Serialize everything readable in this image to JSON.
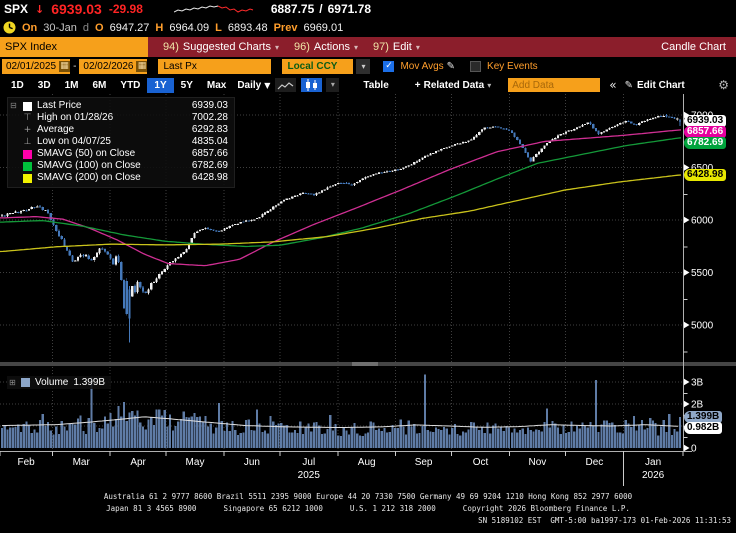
{
  "icons": {
    "caret_down": "▾",
    "caret_down_solid": "▼",
    "pencil": "✎",
    "gear": "⚙",
    "collapse": "«",
    "check": "✓",
    "plus": "+",
    "tree_minus": "⊟",
    "tree_plus": "⊞",
    "calendar": "▦",
    "slash": "/"
  },
  "header": {
    "ticker": "SPX",
    "arrow": "↓",
    "last": "6939.03",
    "change": "-29.98",
    "range_low": "6887.75",
    "range_sep": "/",
    "range_high": "6971.78",
    "session": {
      "on_label": "On",
      "date": "30-Jan",
      "freq": "d",
      "o_label": "O",
      "open": "6947.27",
      "h_label": "H",
      "high": "6964.09",
      "l_label": "L",
      "low": "6893.48",
      "prev_label": "Prev",
      "prev": "6969.01"
    }
  },
  "menubar": {
    "ticker_box": "SPX Index",
    "items": [
      {
        "key": "94)",
        "label": "Suggested Charts"
      },
      {
        "key": "96)",
        "label": "Actions"
      },
      {
        "key": "97)",
        "label": "Edit"
      }
    ],
    "right_label": "Candle Chart"
  },
  "toolbar": {
    "date_from": "02/01/2025",
    "dash": "-",
    "date_to": "02/02/2026",
    "price_field": "Last Px",
    "currency": "Local CCY",
    "mov_avgs": "Mov Avgs",
    "key_events": "Key Events"
  },
  "tabs": {
    "periods": [
      "1D",
      "3D",
      "1M",
      "6M",
      "YTD",
      "1Y",
      "5Y",
      "Max"
    ],
    "selected": "1Y",
    "frequency": "Daily",
    "table": "Table",
    "related": "Related Data",
    "add_data_placeholder": "Add Data",
    "collapse": "«",
    "edit_chart": "Edit Chart"
  },
  "legend": {
    "rows": [
      {
        "type": "square",
        "color": "#ffffff",
        "label": "Last Price",
        "value": "6939.03"
      },
      {
        "type": "glyph",
        "glyph": "⊤",
        "label": "High on 01/28/26",
        "value": "7002.28"
      },
      {
        "type": "glyph",
        "glyph": "+",
        "label": "Average",
        "value": "6292.83"
      },
      {
        "type": "glyph",
        "glyph": "⊥",
        "label": "Low on 04/07/25",
        "value": "4835.04"
      },
      {
        "type": "square",
        "color": "#ff00aa",
        "label": "SMAVG (50) on Close",
        "value": "6857.66"
      },
      {
        "type": "square",
        "color": "#00c13c",
        "label": "SMAVG (100) on Close",
        "value": "6782.69"
      },
      {
        "type": "square",
        "color": "#f2f200",
        "label": "SMAVG (200) on Close",
        "value": "6428.98"
      }
    ]
  },
  "volume_legend": {
    "label": "Volume",
    "value": "1.399B"
  },
  "chips": [
    {
      "name": "last-price-chip",
      "label": "6939.03",
      "bg": "#ffffff",
      "fg": "#000000",
      "panel": "price",
      "value": 6939.03
    },
    {
      "name": "smavg50-chip",
      "label": "6857.66",
      "bg": "#e6009e",
      "fg": "#ffffff",
      "panel": "price",
      "value": 6857.66
    },
    {
      "name": "smavg100-chip",
      "label": "6782.69",
      "bg": "#00a33c",
      "fg": "#ffffff",
      "panel": "price",
      "value": 6782.69
    },
    {
      "name": "smavg200-chip",
      "label": "6428.98",
      "bg": "#e8e800",
      "fg": "#000000",
      "panel": "price",
      "value": 6428.98
    },
    {
      "name": "volume-chip",
      "label": "1.399B",
      "bg": "#8fa8c8",
      "fg": "#000000",
      "panel": "volume",
      "value": 1.399
    },
    {
      "name": "volume-avg-chip",
      "label": "0.982B",
      "bg": "#ffffff",
      "fg": "#000000",
      "panel": "volume",
      "value": 0.982
    }
  ],
  "footer": {
    "line1": "Australia 61 2 9777 8600 Brazil 5511 2395 9000 Europe 44 20 7330 7500 Germany 49 69 9204 1210 Hong Kong 852 2977 6000",
    "line2": "Japan 81 3 4565 8900      Singapore 65 6212 1000      U.S. 1 212 318 2000      Copyright 2026 Bloomberg Finance L.P.",
    "line3": "SN 5189102 EST  GMT-5:00 ba1997-173 01-Feb-2026 11:31:53"
  },
  "chart_data": {
    "type": "candlestick+volume",
    "title": "SPX Index Candle Chart 1Y Daily",
    "x_range": [
      "02/01/2025",
      "02/02/2026"
    ],
    "price_ticks": [
      7000,
      6500,
      6000,
      5500,
      5000
    ],
    "volume_ticks": [
      {
        "v": 3,
        "label": "3B"
      },
      {
        "v": 2,
        "label": "2B"
      },
      {
        "v": 0,
        "label": "0"
      }
    ],
    "months": [
      "Feb",
      "Mar",
      "Apr",
      "May",
      "Jun",
      "Jul",
      "Aug",
      "Sep",
      "Oct",
      "Nov",
      "Dec",
      "Jan"
    ],
    "month_day_offsets": [
      0,
      28,
      59,
      89,
      120,
      150,
      181,
      212,
      242,
      273,
      303,
      334,
      366
    ],
    "year_labels": [
      {
        "under_month_index": 5,
        "year": "2025"
      },
      {
        "under_month_index": 11,
        "year": "2026"
      }
    ],
    "stats": {
      "last_price": 6939.03,
      "high_date": "01/28/26",
      "high": 7002.28,
      "average": 6292.83,
      "low_date": "04/07/25",
      "low": 4835.04,
      "smavg50": 6857.66,
      "smavg100": 6782.69,
      "smavg200": 6428.98,
      "volume_last_b": 1.399,
      "volume_avg_b": 0.982
    },
    "last_candle": {
      "o": 6947.27,
      "h": 6964.09,
      "l": 6893.48,
      "c": 6939.03
    },
    "close_anchors": [
      [
        0,
        6040
      ],
      [
        0.02,
        6070
      ],
      [
        0.05,
        6130
      ],
      [
        0.065,
        6090
      ],
      [
        0.076,
        5950
      ],
      [
        0.09,
        5780
      ],
      [
        0.104,
        5600
      ],
      [
        0.118,
        5680
      ],
      [
        0.132,
        5620
      ],
      [
        0.145,
        5740
      ],
      [
        0.156,
        5680
      ],
      [
        0.164,
        5580
      ],
      [
        0.169,
        5670
      ],
      [
        0.174,
        5540
      ],
      [
        0.177,
        5390
      ],
      [
        0.181,
        5075
      ],
      [
        0.186,
        5062
      ],
      [
        0.19,
        5460
      ],
      [
        0.194,
        5270
      ],
      [
        0.2,
        5400
      ],
      [
        0.21,
        5290
      ],
      [
        0.22,
        5390
      ],
      [
        0.235,
        5500
      ],
      [
        0.25,
        5610
      ],
      [
        0.27,
        5700
      ],
      [
        0.285,
        5890
      ],
      [
        0.3,
        5920
      ],
      [
        0.32,
        5890
      ],
      [
        0.335,
        5940
      ],
      [
        0.355,
        5985
      ],
      [
        0.375,
        6010
      ],
      [
        0.395,
        6100
      ],
      [
        0.41,
        6170
      ],
      [
        0.425,
        6210
      ],
      [
        0.445,
        6265
      ],
      [
        0.46,
        6235
      ],
      [
        0.48,
        6315
      ],
      [
        0.5,
        6360
      ],
      [
        0.515,
        6330
      ],
      [
        0.535,
        6405
      ],
      [
        0.555,
        6445
      ],
      [
        0.575,
        6465
      ],
      [
        0.59,
        6490
      ],
      [
        0.605,
        6535
      ],
      [
        0.625,
        6605
      ],
      [
        0.645,
        6665
      ],
      [
        0.665,
        6715
      ],
      [
        0.69,
        6755
      ],
      [
        0.71,
        6875
      ],
      [
        0.73,
        6890
      ],
      [
        0.75,
        6850
      ],
      [
        0.765,
        6720
      ],
      [
        0.78,
        6560
      ],
      [
        0.795,
        6680
      ],
      [
        0.81,
        6765
      ],
      [
        0.83,
        6835
      ],
      [
        0.85,
        6885
      ],
      [
        0.865,
        6930
      ],
      [
        0.88,
        6820
      ],
      [
        0.9,
        6885
      ],
      [
        0.92,
        6940
      ],
      [
        0.935,
        6905
      ],
      [
        0.95,
        6950
      ],
      [
        0.965,
        6978
      ],
      [
        0.975,
        7000
      ],
      [
        0.99,
        6969
      ],
      [
        1,
        6939.03
      ]
    ],
    "sma50_anchors": [
      [
        0,
        6020
      ],
      [
        0.05,
        6032
      ],
      [
        0.09,
        6008
      ],
      [
        0.13,
        5920
      ],
      [
        0.17,
        5810
      ],
      [
        0.21,
        5675
      ],
      [
        0.245,
        5585
      ],
      [
        0.3,
        5565
      ],
      [
        0.35,
        5625
      ],
      [
        0.4,
        5790
      ],
      [
        0.46,
        5958
      ],
      [
        0.52,
        6108
      ],
      [
        0.59,
        6290
      ],
      [
        0.66,
        6480
      ],
      [
        0.73,
        6650
      ],
      [
        0.8,
        6748
      ],
      [
        0.86,
        6778
      ],
      [
        0.92,
        6808
      ],
      [
        0.97,
        6840
      ],
      [
        1,
        6857.66
      ]
    ],
    "sma100_anchors": [
      [
        0,
        5980
      ],
      [
        0.06,
        5995
      ],
      [
        0.12,
        5940
      ],
      [
        0.18,
        5858
      ],
      [
        0.24,
        5798
      ],
      [
        0.3,
        5768
      ],
      [
        0.36,
        5748
      ],
      [
        0.41,
        5760
      ],
      [
        0.47,
        5830
      ],
      [
        0.53,
        5922
      ],
      [
        0.6,
        6060
      ],
      [
        0.67,
        6232
      ],
      [
        0.73,
        6390
      ],
      [
        0.79,
        6540
      ],
      [
        0.85,
        6618
      ],
      [
        0.92,
        6708
      ],
      [
        1,
        6782.69
      ]
    ],
    "sma200_anchors": [
      [
        0,
        5700
      ],
      [
        0.08,
        5745
      ],
      [
        0.16,
        5770
      ],
      [
        0.24,
        5763
      ],
      [
        0.32,
        5770
      ],
      [
        0.4,
        5792
      ],
      [
        0.48,
        5842
      ],
      [
        0.55,
        5920
      ],
      [
        0.62,
        6015
      ],
      [
        0.69,
        6085
      ],
      [
        0.76,
        6185
      ],
      [
        0.83,
        6285
      ],
      [
        0.91,
        6362
      ],
      [
        1,
        6428.98
      ]
    ],
    "volume_avg_anchors": [
      [
        0,
        1.02
      ],
      [
        0.08,
        1.06
      ],
      [
        0.13,
        1.18
      ],
      [
        0.18,
        1.32
      ],
      [
        0.21,
        1.42
      ],
      [
        0.25,
        1.32
      ],
      [
        0.3,
        1.18
      ],
      [
        0.36,
        1.02
      ],
      [
        0.42,
        0.96
      ],
      [
        0.5,
        0.93
      ],
      [
        0.56,
        0.96
      ],
      [
        0.61,
        1.05
      ],
      [
        0.66,
        1.0
      ],
      [
        0.71,
        0.94
      ],
      [
        0.76,
        0.97
      ],
      [
        0.81,
        1.06
      ],
      [
        0.86,
        1.02
      ],
      [
        0.9,
        1.0
      ],
      [
        0.95,
        1.06
      ],
      [
        1,
        0.982
      ]
    ],
    "volume_spikes": [
      [
        0.059,
        1.55
      ],
      [
        0.133,
        3.2
      ],
      [
        0.161,
        1.6
      ],
      [
        0.173,
        1.9
      ],
      [
        0.181,
        2.1
      ],
      [
        0.2,
        1.7
      ],
      [
        0.319,
        2.05
      ],
      [
        0.376,
        1.75
      ],
      [
        0.397,
        1.45
      ],
      [
        0.483,
        1.5
      ],
      [
        0.625,
        3.35
      ],
      [
        0.805,
        1.8
      ],
      [
        0.877,
        3.1
      ],
      [
        0.93,
        1.45
      ],
      [
        0.983,
        1.55
      ],
      [
        1,
        1.399
      ]
    ],
    "sparkline": {
      "white": [
        [
          0,
          10
        ],
        [
          4,
          8
        ],
        [
          8,
          9
        ],
        [
          12,
          7
        ],
        [
          16,
          8
        ],
        [
          20,
          6
        ],
        [
          24,
          7
        ],
        [
          28,
          5
        ],
        [
          32,
          6
        ],
        [
          36,
          4
        ],
        [
          40,
          5
        ],
        [
          44,
          4
        ]
      ],
      "red": [
        [
          44,
          4
        ],
        [
          48,
          6
        ],
        [
          52,
          5
        ],
        [
          56,
          8
        ],
        [
          60,
          7
        ],
        [
          64,
          10
        ],
        [
          68,
          8
        ],
        [
          72,
          9
        ],
        [
          76,
          7
        ],
        [
          79,
          8
        ]
      ]
    },
    "colors": {
      "up_candle": "#f0f0f0",
      "down_candle": "#4579ba",
      "sma50": "#cf2f93",
      "sma100": "#149939",
      "sma200": "#c9c21b",
      "volume_bar": "#5f7ca6",
      "volume_avg_line": "#e0e0e0",
      "grid": "#3f3f3f",
      "axis": "#b0b0b0"
    }
  }
}
